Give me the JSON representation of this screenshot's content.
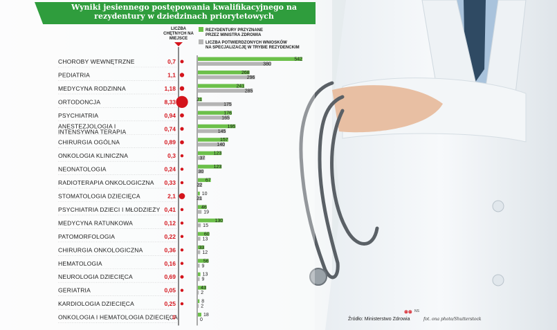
{
  "title": "Wyniki jesiennego postępowania kwalifikacyjnego na rezydentury w dziedzinach priorytetowych",
  "colors": {
    "accent": "#2f9d3d",
    "green_bar": "#6cc04a",
    "gray_bar": "#b5b5b5",
    "ratio_red": "#d4141c"
  },
  "source": "Źródło: Ministerstwo Zdrowia",
  "photo_credit": "fot. ona photo/Shutterstock",
  "logo": "⊗⊗",
  "logo_suffix": "NS",
  "chart_data": {
    "type": "bar",
    "title": "Wyniki jesiennego postępowania kwalifikacyjnego na rezydentury w dziedzinach priorytetowych",
    "ratio_header": [
      "LICZBA",
      "CHĘTNYCH NA",
      "MIEJSCE"
    ],
    "categories": [
      [
        "CHOROBY WEWNĘTRZNE"
      ],
      [
        "PEDIATRIA"
      ],
      [
        "MEDYCYNA RODZINNA"
      ],
      [
        "ORTODONCJA"
      ],
      [
        "PSYCHIATRIA"
      ],
      [
        "ANESTEZJOLOGIA I",
        "INTENSYWNA TERAPIA"
      ],
      [
        "CHIRURGIA OGÓLNA"
      ],
      [
        "ONKOLOGIA KLINICZNA"
      ],
      [
        "NEONATOLOGIA"
      ],
      [
        "RADIOTERAPIA ONKOLOGICZNA"
      ],
      [
        "STOMATOLOGIA DZIECIĘCA"
      ],
      [
        "PSYCHIATRIA DZIECI I MŁODZIEŻY"
      ],
      [
        "MEDYCYNA RATUNKOWA"
      ],
      [
        "PATOMORFOLOGIA"
      ],
      [
        "CHIRURGIA ONKOLOGICZNA"
      ],
      [
        "HEMATOLOGIA"
      ],
      [
        "NEUROLOGIA DZIECIĘCA"
      ],
      [
        "GERIATRIA"
      ],
      [
        "KARDIOLOGIA DZIECIĘCA"
      ],
      [
        "ONKOLOGIA I HEMATOLOGIA DZIECIĘCA"
      ]
    ],
    "ratio": {
      "name": "Liczba chętnych na miejsce",
      "labels": [
        "0,7",
        "1,1",
        "1,18",
        "8,33",
        "0,94",
        "0,74",
        "0,89",
        "0,3",
        "0,24",
        "0,33",
        "2,1",
        "0,41",
        "0,12",
        "0,22",
        "0,36",
        "0,16",
        "0,69",
        "0,05",
        "0,25",
        "0"
      ],
      "values": [
        0.7,
        1.1,
        1.18,
        8.33,
        0.94,
        0.74,
        0.89,
        0.3,
        0.24,
        0.33,
        2.1,
        0.41,
        0.12,
        0.22,
        0.36,
        0.16,
        0.69,
        0.05,
        0.25,
        0
      ]
    },
    "series": [
      {
        "name": "REZYDENTURY PRZYZNANE PRZEZ MINISTRA ZDROWIA",
        "legend_lines": [
          "REZYDENTURY PRZYZNANE",
          "PRZEZ MINISTRA ZDROWIA"
        ],
        "values": [
          542,
          268,
          241,
          21,
          176,
          195,
          157,
          123,
          123,
          67,
          10,
          46,
          130,
          60,
          33,
          56,
          13,
          43,
          8,
          18
        ]
      },
      {
        "name": "LICZBA POTWIERDZONYCH WNIOSKÓW NA SPECJALIZACJĘ W TRYBIE REZYDENCKIM",
        "legend_lines": [
          "LICZBA POTWIERDZONYCH WNIOSKÓW",
          "NA SPECJALIZACJĘ W TRYBIE REZYDENCKIM"
        ],
        "values": [
          380,
          296,
          285,
          175,
          165,
          145,
          140,
          37,
          30,
          22,
          21,
          19,
          15,
          13,
          12,
          9,
          9,
          2,
          2,
          0
        ]
      }
    ]
  }
}
